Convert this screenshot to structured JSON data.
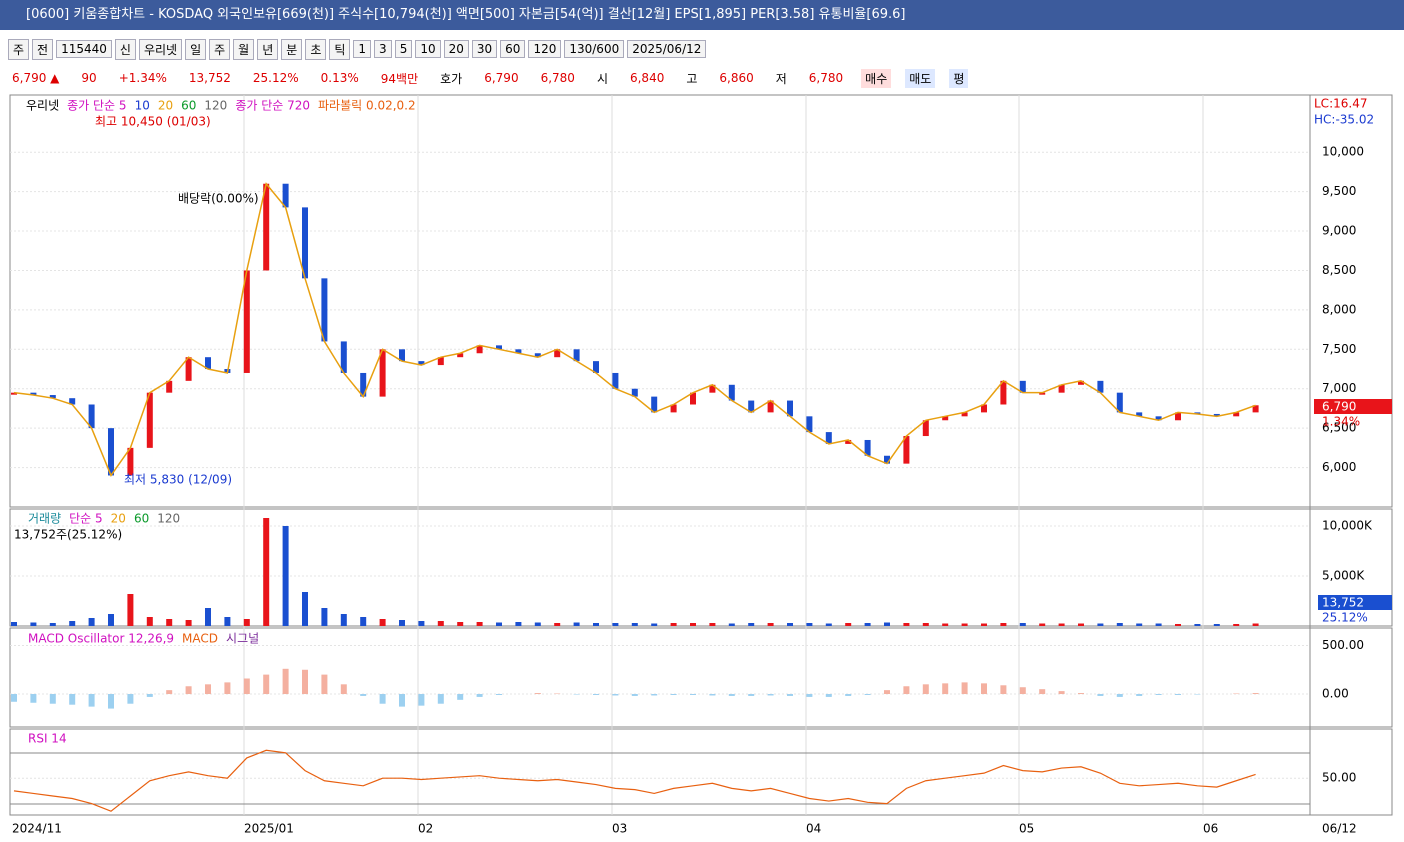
{
  "title_bar": {
    "title": "[0600] 키움종합차트 - KOSDAQ 외국인보유[669(천)] 주식수[10,794(천)] 액면[500] 자본금[54(억)] 결산[12월] EPS[1,895] PER[3.58] 유통비율[69.6]"
  },
  "toolbar": {
    "items": [
      "주",
      "전",
      "115440",
      "신",
      "우리넷",
      "일",
      "주",
      "월",
      "년",
      "분",
      "초",
      "틱",
      "1",
      "3",
      "5",
      "10",
      "20",
      "30",
      "60",
      "120",
      "130/600",
      "2025/06/12"
    ]
  },
  "quote": {
    "items": [
      "6,790 ▲",
      "90",
      "+1.34%",
      "13,752",
      "25.12%",
      "0.13%",
      "94백만",
      "호가",
      "6,790",
      "6,780",
      "시",
      "6,840",
      "고",
      "6,860",
      "저",
      "6,780",
      "매수",
      "매도",
      "평"
    ]
  },
  "price_panel": {
    "legend": [
      "우리넷",
      "종가 단순 5",
      "10",
      "20",
      "60",
      "120",
      "종가 단순 720",
      "파라볼릭 0.02,0.2"
    ],
    "annotations": [
      "최고 10,450 (01/03)",
      "배당락(0.00%)",
      "최저 5,830 (12/09)"
    ],
    "right_labels": [
      "LC:16.47",
      "HC:-35.02",
      "6,790",
      "1.34%"
    ],
    "ylim": [
      5500,
      10700
    ],
    "yticks": [
      {
        "value": 6000,
        "label": "6,000"
      },
      {
        "value": 6500,
        "label": "6,500"
      },
      {
        "value": 7000,
        "label": "7,000"
      },
      {
        "value": 7500,
        "label": "7,500"
      },
      {
        "value": 8000,
        "label": "8,000"
      },
      {
        "value": 8500,
        "label": "8,500"
      },
      {
        "value": 9000,
        "label": "9,000"
      },
      {
        "value": 9500,
        "label": "9,500"
      },
      {
        "value": 10000,
        "label": "10,000"
      }
    ],
    "close": [
      6950,
      6920,
      6880,
      6800,
      6500,
      5900,
      6250,
      6950,
      7100,
      7400,
      7250,
      7200,
      8500,
      9600,
      9300,
      8400,
      7600,
      7200,
      6900,
      7500,
      7350,
      7300,
      7400,
      7450,
      7550,
      7500,
      7450,
      7400,
      7500,
      7350,
      7200,
      7000,
      6900,
      6700,
      6800,
      6950,
      7050,
      6850,
      6700,
      6850,
      6650,
      6450,
      6300,
      6350,
      6150,
      6050,
      6400,
      6600,
      6650,
      6700,
      6800,
      7100,
      6950,
      6950,
      7050,
      7100,
      6950,
      6700,
      6650,
      6600,
      6700,
      6680,
      6650,
      6700,
      6790
    ]
  },
  "volume_panel": {
    "legend": [
      "거래량",
      "단순 5",
      "20",
      "60",
      "120",
      "13,752주(25.12%)"
    ],
    "right_labels": [
      "13,752",
      "25.12%"
    ],
    "ylim": [
      0,
      11500
    ],
    "yticks": [
      {
        "value": 5000,
        "label": "5,000K"
      },
      {
        "value": 10000,
        "label": "10,000K"
      }
    ],
    "values": [
      400,
      350,
      300,
      500,
      800,
      1200,
      3200,
      900,
      700,
      600,
      1800,
      900,
      700,
      10800,
      10000,
      3400,
      1800,
      1200,
      900,
      700,
      600,
      500,
      500,
      400,
      400,
      350,
      400,
      350,
      300,
      350,
      300,
      300,
      300,
      250,
      300,
      300,
      300,
      250,
      300,
      300,
      300,
      300,
      250,
      300,
      300,
      350,
      300,
      300,
      250,
      250,
      250,
      300,
      300,
      250,
      250,
      250,
      250,
      300,
      250,
      250,
      200,
      200,
      200,
      200,
      250
    ]
  },
  "macd_panel": {
    "legend": [
      "MACD Oscillator 12,26,9",
      "MACD",
      "시그널"
    ],
    "ylim": [
      -340,
      660
    ],
    "yticks": [
      {
        "value": 0,
        "label": "0.00"
      },
      {
        "value": 500,
        "label": "500.00"
      }
    ],
    "values": [
      -80,
      -90,
      -100,
      -110,
      -130,
      -150,
      -100,
      -30,
      40,
      80,
      100,
      120,
      160,
      200,
      260,
      250,
      200,
      100,
      -20,
      -100,
      -130,
      -120,
      -100,
      -60,
      -30,
      -10,
      0,
      10,
      5,
      -5,
      -10,
      -15,
      -20,
      -15,
      -10,
      -10,
      -15,
      -20,
      -20,
      -15,
      -20,
      -30,
      -30,
      -20,
      -10,
      40,
      80,
      100,
      110,
      120,
      110,
      90,
      70,
      50,
      30,
      10,
      -20,
      -30,
      -20,
      -10,
      -10,
      -5,
      0,
      5,
      10
    ]
  },
  "rsi_panel": {
    "legend": [
      "RSI 14"
    ],
    "ylim": [
      21,
      88
    ],
    "yticks": [
      {
        "value": 50,
        "label": "50.00"
      }
    ],
    "values": [
      40,
      38,
      36,
      34,
      30,
      24,
      36,
      48,
      52,
      55,
      52,
      50,
      66,
      72,
      70,
      56,
      48,
      46,
      44,
      50,
      50,
      49,
      50,
      51,
      52,
      50,
      49,
      48,
      49,
      47,
      45,
      42,
      41,
      38,
      42,
      44,
      46,
      42,
      40,
      42,
      38,
      34,
      32,
      34,
      31,
      30,
      42,
      48,
      50,
      52,
      54,
      60,
      56,
      55,
      58,
      59,
      54,
      46,
      44,
      45,
      46,
      44,
      43,
      48,
      53
    ]
  },
  "x_axis": {
    "labels": [
      "2024/11",
      "2025/01",
      "02",
      "03",
      "04",
      "05",
      "06",
      "06/12"
    ]
  }
}
